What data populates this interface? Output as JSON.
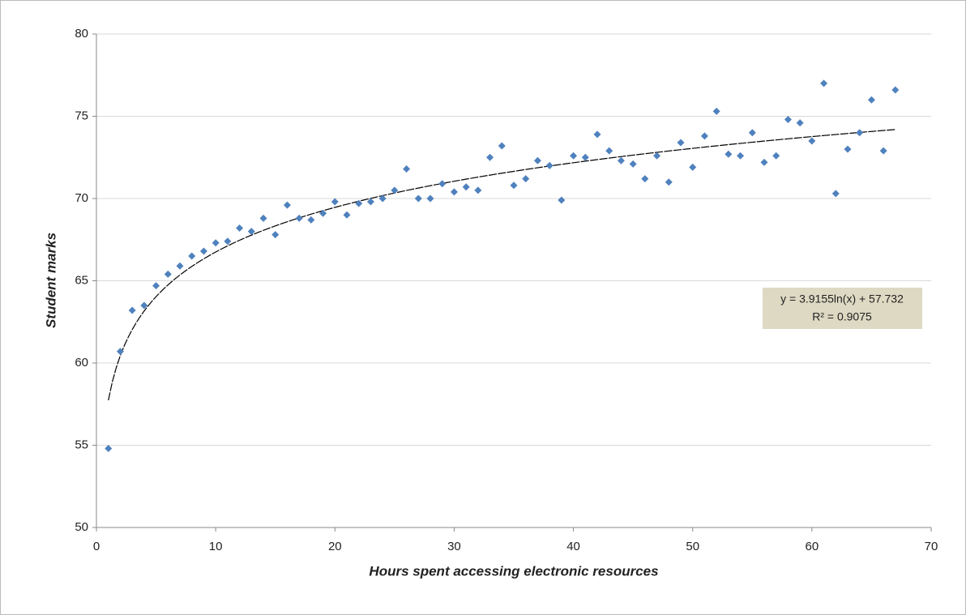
{
  "chart_data": {
    "type": "scatter",
    "x_label": "Hours spent accessing electronic resources",
    "y_label": "Student marks",
    "x": [
      1,
      2,
      3,
      4,
      5,
      6,
      7,
      8,
      9,
      10,
      11,
      12,
      13,
      14,
      15,
      16,
      17,
      18,
      19,
      20,
      21,
      22,
      23,
      24,
      25,
      26,
      27,
      28,
      29,
      30,
      31,
      32,
      33,
      34,
      35,
      36,
      37,
      38,
      39,
      40,
      41,
      42,
      43,
      44,
      45,
      46,
      47,
      48,
      49,
      50,
      51,
      52,
      53,
      54,
      55,
      56,
      57,
      58,
      59,
      60,
      61,
      62,
      63,
      64,
      65,
      66,
      67
    ],
    "values": [
      54.8,
      60.7,
      63.2,
      63.5,
      64.7,
      65.4,
      65.9,
      66.5,
      66.8,
      67.3,
      67.4,
      68.2,
      68.0,
      68.8,
      67.8,
      69.6,
      68.8,
      68.7,
      69.1,
      69.8,
      69.0,
      69.7,
      69.8,
      70.0,
      70.5,
      71.8,
      70.0,
      70.0,
      70.9,
      70.4,
      70.7,
      70.5,
      72.5,
      73.2,
      70.8,
      71.2,
      72.3,
      72.0,
      69.9,
      72.6,
      72.5,
      73.9,
      72.9,
      72.3,
      72.1,
      71.2,
      72.6,
      71.0,
      73.4,
      71.9,
      73.8,
      75.3,
      72.7,
      72.6,
      74.0,
      72.2,
      72.6,
      74.8,
      74.6,
      73.5,
      77.0,
      70.3,
      73.0,
      74.0,
      76.0,
      72.9,
      76.6
    ],
    "color": "#4f81bd",
    "xlim": [
      0,
      70
    ],
    "xticks": [
      0,
      10,
      20,
      30,
      40,
      50,
      60,
      70
    ],
    "ylim": [
      50,
      80
    ],
    "yticks": [
      50,
      55,
      60,
      65,
      70,
      75,
      80
    ],
    "grid": true,
    "trendline": {
      "type": "log",
      "coefficient": 3.9155,
      "intercept": 57.732,
      "equation": "y = 3.9155ln(x) + 57.732",
      "r_squared": "R² = 0.9075"
    }
  }
}
